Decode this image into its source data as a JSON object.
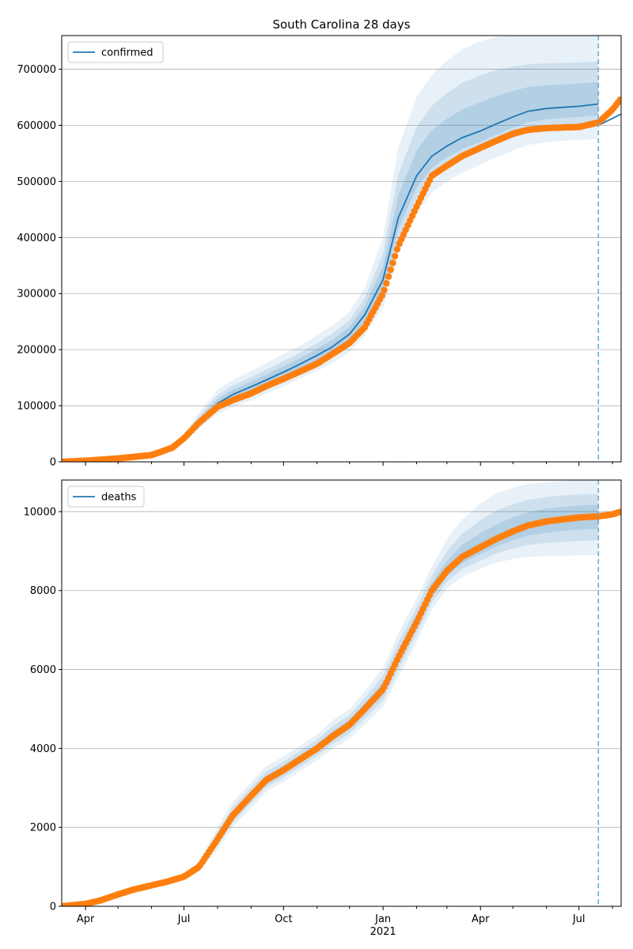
{
  "chart_data": [
    {
      "type": "line",
      "title": "South Carolina 28 days",
      "xlabel": "",
      "ylabel": "",
      "x_range": [
        "2020-03-10",
        "2021-08-09"
      ],
      "ylim": [
        0,
        760000
      ],
      "y_ticks": [
        0,
        100000,
        200000,
        300000,
        400000,
        500000,
        600000,
        700000
      ],
      "y_tick_labels": [
        "0",
        "100000",
        "200000",
        "300000",
        "400000",
        "500000",
        "600000",
        "700000"
      ],
      "grid": "horizontal",
      "legend_position": "top-left",
      "legend": [
        "confirmed"
      ],
      "colors": {
        "model": "#1f77b4",
        "observed": "#ff7f0e",
        "band": "#1f77b4",
        "forecast_line": "#6baed6"
      },
      "forecast_start": "2021-07-19",
      "observed": {
        "x": [
          "2020-03-10",
          "2020-04-01",
          "2020-05-01",
          "2020-06-01",
          "2020-06-20",
          "2020-07-01",
          "2020-07-15",
          "2020-08-01",
          "2020-08-15",
          "2020-09-01",
          "2020-09-15",
          "2020-10-01",
          "2020-10-15",
          "2020-11-01",
          "2020-11-15",
          "2020-12-01",
          "2020-12-15",
          "2021-01-01",
          "2021-01-15",
          "2021-02-01",
          "2021-02-15",
          "2021-03-01",
          "2021-03-15",
          "2021-04-01",
          "2021-04-15",
          "2021-05-01",
          "2021-05-15",
          "2021-06-01",
          "2021-06-15",
          "2021-07-01",
          "2021-07-19",
          "2021-08-01",
          "2021-08-09"
        ],
        "values": [
          0,
          2000,
          6000,
          12000,
          25000,
          42000,
          70000,
          98000,
          110000,
          122000,
          135000,
          148000,
          160000,
          175000,
          192000,
          212000,
          240000,
          300000,
          385000,
          455000,
          510000,
          528000,
          545000,
          560000,
          572000,
          585000,
          592000,
          595000,
          596000,
          597000,
          605000,
          628000,
          648000
        ]
      },
      "model": {
        "x": [
          "2020-03-10",
          "2020-04-01",
          "2020-05-01",
          "2020-06-01",
          "2020-06-20",
          "2020-07-01",
          "2020-07-15",
          "2020-08-01",
          "2020-08-15",
          "2020-09-01",
          "2020-09-15",
          "2020-10-01",
          "2020-10-15",
          "2020-11-01",
          "2020-11-15",
          "2020-12-01",
          "2020-12-15",
          "2021-01-01",
          "2021-01-15",
          "2021-02-01",
          "2021-02-15",
          "2021-03-01",
          "2021-03-15",
          "2021-04-01",
          "2021-04-15",
          "2021-05-01",
          "2021-05-15",
          "2021-06-01",
          "2021-06-15",
          "2021-07-01",
          "2021-07-19"
        ],
        "values": [
          0,
          2000,
          6000,
          12000,
          25000,
          43000,
          72000,
          104000,
          120000,
          134000,
          146000,
          160000,
          173000,
          190000,
          205000,
          228000,
          262000,
          325000,
          435000,
          510000,
          545000,
          563000,
          578000,
          590000,
          602000,
          615000,
          625000,
          630000,
          632000,
          634000,
          638000
        ],
        "lower": [
          0,
          1800,
          5400,
          10800,
          22000,
          37000,
          60000,
          85000,
          98000,
          110000,
          122000,
          135000,
          147000,
          162000,
          176000,
          196000,
          225000,
          275000,
          370000,
          445000,
          480000,
          500000,
          515000,
          530000,
          543000,
          555000,
          565000,
          570000,
          572000,
          574000,
          575000
        ],
        "upper": [
          0,
          2200,
          6600,
          13200,
          28000,
          50000,
          88000,
          128000,
          146000,
          162000,
          176000,
          192000,
          206000,
          225000,
          243000,
          268000,
          310000,
          400000,
          560000,
          650000,
          690000,
          715000,
          735000,
          750000,
          758000,
          760000,
          760000,
          760000,
          760000,
          760000,
          760000
        ]
      },
      "forecast_line": {
        "x": [
          "2021-07-19",
          "2021-08-09"
        ],
        "values": [
          600000,
          620000
        ]
      }
    },
    {
      "type": "line",
      "title": "",
      "xlabel": "",
      "ylabel": "",
      "x_range": [
        "2020-03-10",
        "2021-08-09"
      ],
      "ylim": [
        0,
        10800
      ],
      "y_ticks": [
        0,
        2000,
        4000,
        6000,
        8000,
        10000
      ],
      "y_tick_labels": [
        "0",
        "2000",
        "4000",
        "6000",
        "8000",
        "10000"
      ],
      "x_ticks": [
        "2020-04-01",
        "2020-07-01",
        "2020-10-01",
        "2021-01-01",
        "2021-04-01",
        "2021-07-01"
      ],
      "x_tick_labels": [
        "Apr",
        "Jul",
        "Oct",
        "Jan",
        "Apr",
        "Jul"
      ],
      "x_year_label": "2021",
      "grid": "horizontal",
      "legend_position": "top-left",
      "legend": [
        "deaths"
      ],
      "colors": {
        "model": "#1f77b4",
        "observed": "#ff7f0e",
        "band": "#1f77b4",
        "forecast_line": "#6baed6"
      },
      "forecast_start": "2021-07-19",
      "observed": {
        "x": [
          "2020-03-10",
          "2020-04-01",
          "2020-04-15",
          "2020-05-01",
          "2020-05-15",
          "2020-06-01",
          "2020-06-15",
          "2020-07-01",
          "2020-07-15",
          "2020-08-01",
          "2020-08-15",
          "2020-09-01",
          "2020-09-15",
          "2020-10-01",
          "2020-10-15",
          "2020-11-01",
          "2020-11-15",
          "2020-12-01",
          "2020-12-15",
          "2021-01-01",
          "2021-01-15",
          "2021-02-01",
          "2021-02-15",
          "2021-03-01",
          "2021-03-15",
          "2021-04-01",
          "2021-04-15",
          "2021-05-01",
          "2021-05-15",
          "2021-06-01",
          "2021-06-15",
          "2021-07-01",
          "2021-07-19",
          "2021-08-01",
          "2021-08-09"
        ],
        "values": [
          0,
          60,
          150,
          300,
          420,
          530,
          620,
          750,
          1000,
          1700,
          2300,
          2800,
          3200,
          3450,
          3700,
          4000,
          4300,
          4600,
          5000,
          5500,
          6300,
          7200,
          8000,
          8500,
          8850,
          9100,
          9300,
          9500,
          9650,
          9750,
          9800,
          9850,
          9880,
          9930,
          10000
        ]
      },
      "model": {
        "x": [
          "2020-03-10",
          "2020-04-01",
          "2020-04-15",
          "2020-05-01",
          "2020-05-15",
          "2020-06-01",
          "2020-06-15",
          "2020-07-01",
          "2020-07-15",
          "2020-08-01",
          "2020-08-15",
          "2020-09-01",
          "2020-09-15",
          "2020-10-01",
          "2020-10-15",
          "2020-11-01",
          "2020-11-15",
          "2020-12-01",
          "2020-12-15",
          "2021-01-01",
          "2021-01-15",
          "2021-02-01",
          "2021-02-15",
          "2021-03-01",
          "2021-03-15",
          "2021-04-01",
          "2021-04-15",
          "2021-05-01",
          "2021-05-15",
          "2021-06-01",
          "2021-06-15",
          "2021-07-01",
          "2021-07-19"
        ],
        "values": [
          0,
          60,
          150,
          300,
          420,
          530,
          620,
          750,
          1000,
          1700,
          2300,
          2800,
          3200,
          3450,
          3700,
          4000,
          4300,
          4600,
          5000,
          5500,
          6300,
          7200,
          8000,
          8500,
          8850,
          9100,
          9300,
          9500,
          9650,
          9750,
          9800,
          9850,
          9880
        ],
        "lower": [
          0,
          50,
          130,
          260,
          370,
          470,
          560,
          680,
          880,
          1450,
          2000,
          2500,
          2900,
          3150,
          3400,
          3700,
          3980,
          4250,
          4600,
          5050,
          5800,
          6700,
          7500,
          8050,
          8350,
          8550,
          8700,
          8800,
          8850,
          8870,
          8880,
          8890,
          8900
        ],
        "upper": [
          0,
          70,
          170,
          340,
          470,
          590,
          690,
          830,
          1150,
          2000,
          2650,
          3150,
          3550,
          3800,
          4050,
          4350,
          4700,
          5000,
          5450,
          6050,
          6900,
          7800,
          8600,
          9300,
          9800,
          10200,
          10450,
          10600,
          10700,
          10750,
          10780,
          10790,
          10800
        ]
      },
      "forecast_line": {
        "x": [],
        "values": []
      }
    }
  ]
}
